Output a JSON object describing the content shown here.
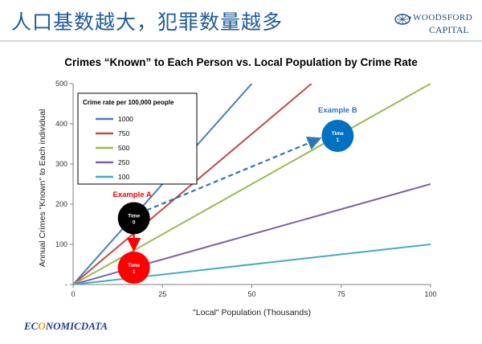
{
  "slide": {
    "title": "人口基数越大，犯罪数量越多"
  },
  "logo": {
    "line1": "WOODSFORD",
    "line2": "CAPITAL"
  },
  "footer": {
    "brand_pre": "EC",
    "brand_accent": "O",
    "brand_post": "NOMICDATA"
  },
  "chart_data": {
    "type": "line",
    "title": "Crimes “Known” to Each Person vs. Local Population by Crime Rate",
    "xlabel": "\"Local\" Population (Thousands)",
    "ylabel": "Annual Crimes \"Known\" to Each individual",
    "xlim": [
      0,
      100
    ],
    "ylim": [
      0,
      500
    ],
    "x_ticks": [
      "0",
      "25",
      "50",
      "75",
      "100"
    ],
    "y_ticks": [
      "-",
      "100",
      "200",
      "300",
      "400",
      "500"
    ],
    "grid": false,
    "legend": {
      "title": "Crime rate per 100,000 people",
      "position": "top-left"
    },
    "series": [
      {
        "name": "1000",
        "color": "#4a7ebb",
        "x": [
          0,
          50
        ],
        "y": [
          0,
          500
        ]
      },
      {
        "name": "750",
        "color": "#be4b48",
        "x": [
          0,
          66.7
        ],
        "y": [
          0,
          500
        ]
      },
      {
        "name": "500",
        "color": "#98b954",
        "x": [
          0,
          100
        ],
        "y": [
          0,
          500
        ]
      },
      {
        "name": "250",
        "color": "#7d60a0",
        "x": [
          0,
          100
        ],
        "y": [
          0,
          250
        ]
      },
      {
        "name": "100",
        "color": "#46aac5",
        "x": [
          0,
          100
        ],
        "y": [
          0,
          100
        ]
      }
    ],
    "annotations": {
      "example_a": {
        "label": "Example A",
        "color": "#ff0000"
      },
      "example_b": {
        "label": "Example B",
        "color": "#2e75b6"
      },
      "circles": [
        {
          "id": "time0",
          "line1": "Time",
          "line2": "0",
          "x": 17,
          "y": 165,
          "fill": "#000000"
        },
        {
          "id": "time1_a",
          "line1": "Time",
          "line2": "1",
          "x": 17,
          "y": 42,
          "fill": "#ff0000"
        },
        {
          "id": "time1_b",
          "line1": "Time",
          "line2": "1",
          "x": 74,
          "y": 370,
          "fill": "#0070c0"
        }
      ]
    }
  }
}
